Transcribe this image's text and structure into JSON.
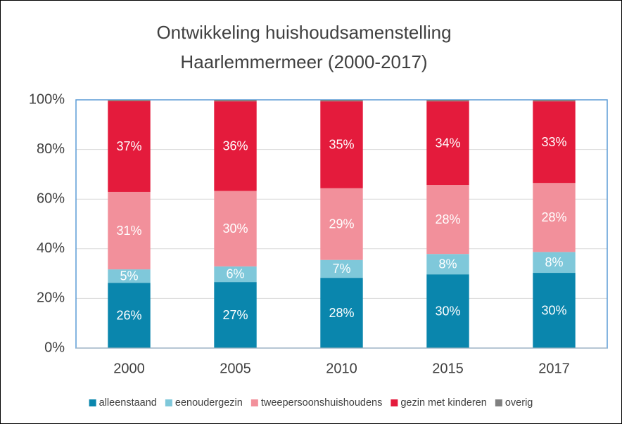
{
  "chart_data": {
    "type": "stacked_bar",
    "title": [
      "Ontwikkeling huishoudsamenstelling",
      "Haarlemmermeer (2000-2017)"
    ],
    "categories": [
      "2000",
      "2005",
      "2010",
      "2015",
      "2017"
    ],
    "series": [
      {
        "name": "alleenstaand",
        "color": "#0a86ad",
        "values": [
          26.3,
          26.6,
          28.3,
          29.7,
          30.3
        ],
        "value_labels": [
          "26%",
          "27%",
          "28%",
          "30%",
          "30%"
        ]
      },
      {
        "name": "eenoudergezin",
        "color": "#7fc8da",
        "values": [
          5.4,
          6.3,
          7.2,
          8.2,
          8.4
        ],
        "value_labels": [
          "5%",
          "6%",
          "7%",
          "8%",
          "8%"
        ]
      },
      {
        "name": "tweepersoonshuishoudens",
        "color": "#f2909b",
        "values": [
          31.2,
          30.4,
          28.9,
          27.8,
          27.8
        ],
        "value_labels": [
          "31%",
          "30%",
          "29%",
          "28%",
          "28%"
        ]
      },
      {
        "name": "gezin met kinderen",
        "color": "#e41b3c",
        "values": [
          36.6,
          36.1,
          35.0,
          33.7,
          32.9
        ],
        "value_labels": [
          "37%",
          "36%",
          "35%",
          "34%",
          "33%"
        ]
      },
      {
        "name": "overig",
        "color": "#808080",
        "values": [
          0.5,
          0.6,
          0.6,
          0.6,
          0.6
        ]
      }
    ],
    "ylim": [
      0,
      100
    ],
    "yticks": [
      {
        "value": 0,
        "label": "0%"
      },
      {
        "value": 20,
        "label": "20%"
      },
      {
        "value": 40,
        "label": "40%"
      },
      {
        "value": 60,
        "label": "60%"
      },
      {
        "value": 80,
        "label": "80%"
      },
      {
        "value": 100,
        "label": "100%"
      }
    ],
    "grid": true,
    "legend": "bottom"
  }
}
